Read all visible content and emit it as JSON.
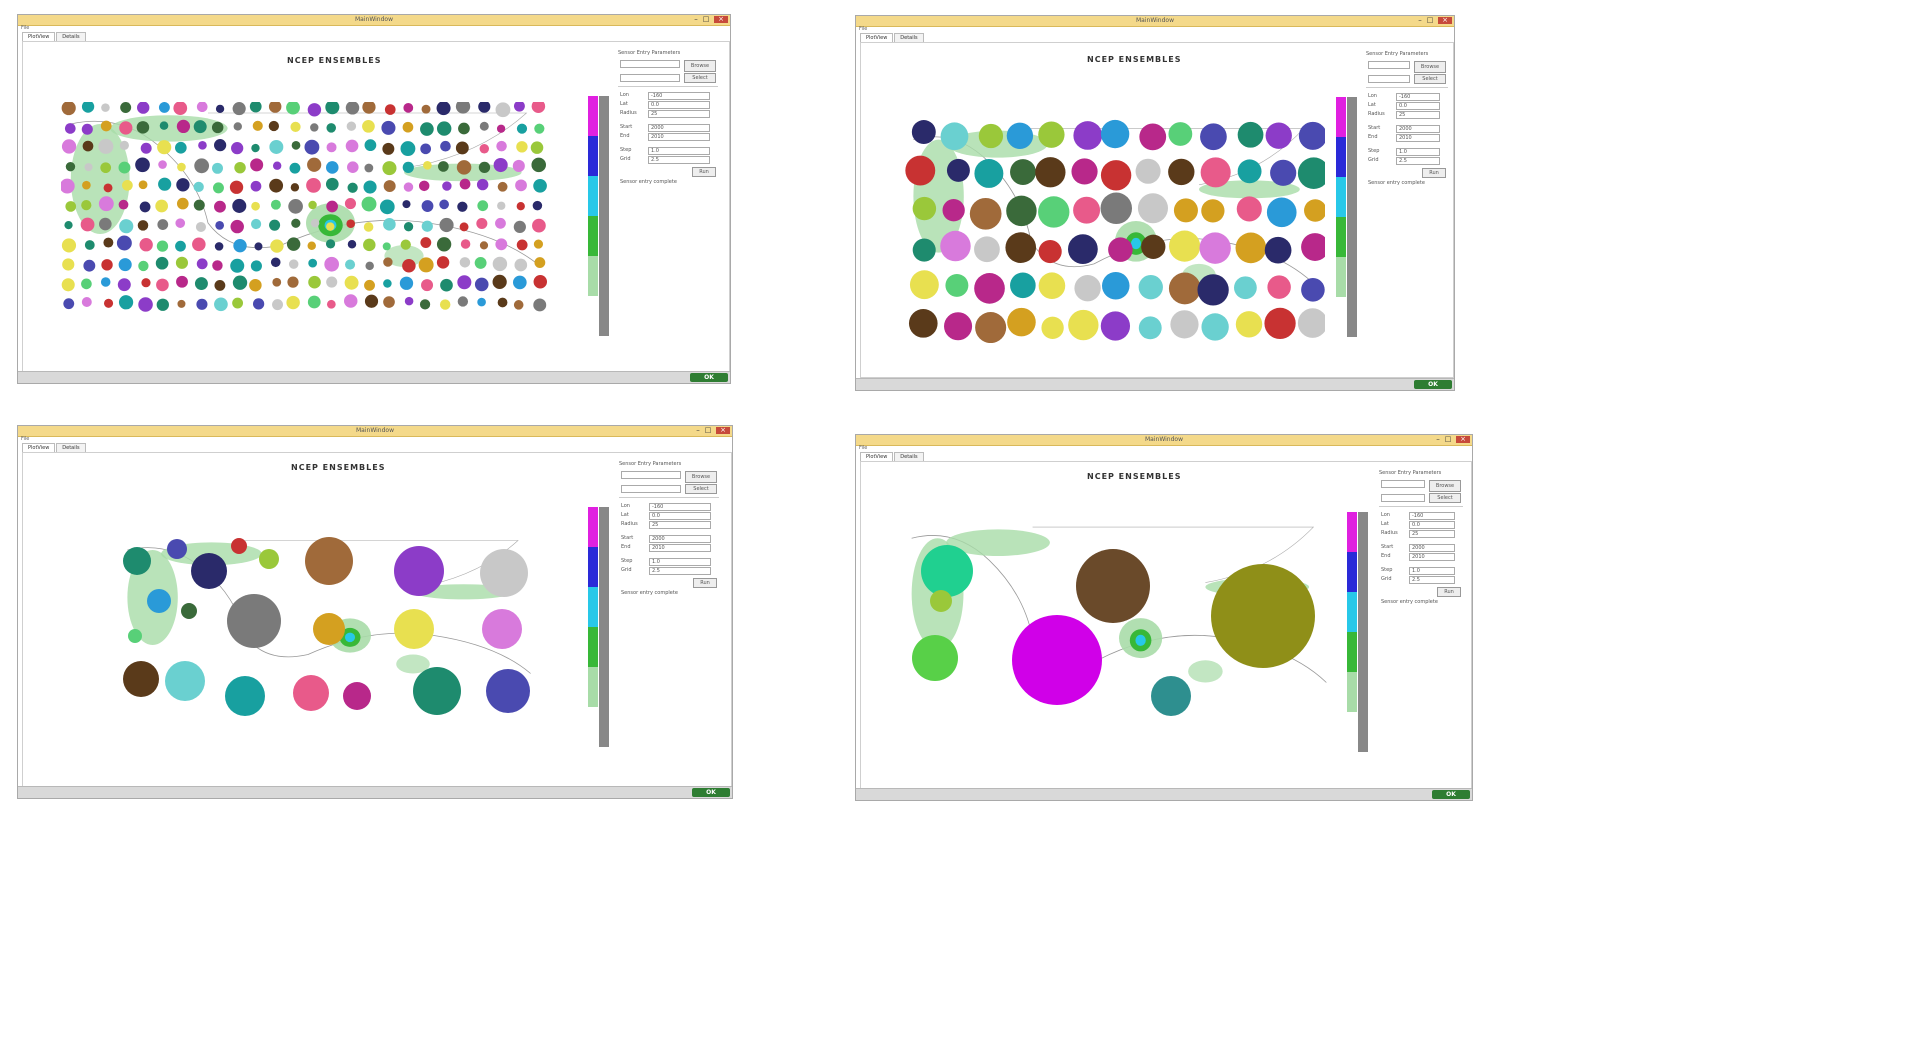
{
  "windows": [
    {
      "title": "MainWindow",
      "tabs": [
        "PlotView",
        "Details"
      ],
      "map_title": "NCEP ENSEMBLES",
      "settings_heading": "Sensor Entry Parameters",
      "fields": [
        {
          "label": "Lon",
          "value": "-160"
        },
        {
          "label": "Lat",
          "value": "0.0"
        },
        {
          "label": "Radius",
          "value": "25"
        },
        {
          "label": "Start",
          "value": "2000"
        },
        {
          "label": "End",
          "value": "2010"
        },
        {
          "label": "Step",
          "value": "1.0"
        },
        {
          "label": "Grid",
          "value": "2.5"
        }
      ],
      "buttons": [
        "Browse",
        "Select",
        "Run"
      ],
      "status_text": "Sensor entry complete",
      "badge": "OK"
    },
    {
      "title": "MainWindow",
      "tabs": [
        "PlotView",
        "Details"
      ],
      "map_title": "NCEP ENSEMBLES",
      "settings_heading": "Sensor Entry Parameters",
      "fields": [
        {
          "label": "Lon",
          "value": "-160"
        },
        {
          "label": "Lat",
          "value": "0.0"
        },
        {
          "label": "Radius",
          "value": "25"
        },
        {
          "label": "Start",
          "value": "2000"
        },
        {
          "label": "End",
          "value": "2010"
        },
        {
          "label": "Step",
          "value": "1.0"
        },
        {
          "label": "Grid",
          "value": "2.5"
        }
      ],
      "buttons": [
        "Browse",
        "Select",
        "Run"
      ],
      "status_text": "Sensor entry complete",
      "badge": "OK"
    },
    {
      "title": "MainWindow",
      "tabs": [
        "PlotView",
        "Details"
      ],
      "map_title": "NCEP ENSEMBLES",
      "settings_heading": "Sensor Entry Parameters",
      "fields": [
        {
          "label": "Lon",
          "value": "-160"
        },
        {
          "label": "Lat",
          "value": "0.0"
        },
        {
          "label": "Radius",
          "value": "25"
        },
        {
          "label": "Start",
          "value": "2000"
        },
        {
          "label": "End",
          "value": "2010"
        },
        {
          "label": "Step",
          "value": "1.0"
        },
        {
          "label": "Grid",
          "value": "2.5"
        }
      ],
      "buttons": [
        "Browse",
        "Select",
        "Run"
      ],
      "status_text": "Sensor entry complete",
      "badge": "OK"
    },
    {
      "title": "MainWindow",
      "tabs": [
        "PlotView",
        "Details"
      ],
      "map_title": "NCEP ENSEMBLES",
      "settings_heading": "Sensor Entry Parameters",
      "fields": [
        {
          "label": "Lon",
          "value": "-160"
        },
        {
          "label": "Lat",
          "value": "0.0"
        },
        {
          "label": "Radius",
          "value": "25"
        },
        {
          "label": "Start",
          "value": "2000"
        },
        {
          "label": "End",
          "value": "2010"
        },
        {
          "label": "Step",
          "value": "1.0"
        },
        {
          "label": "Grid",
          "value": "2.5"
        }
      ],
      "buttons": [
        "Browse",
        "Select",
        "Run"
      ],
      "status_text": "Sensor entry complete",
      "badge": "OK"
    }
  ],
  "colorbar_colors": [
    "#e020e0",
    "#2a2ad8",
    "#28c8e8",
    "#38b838",
    "#a8dca8"
  ],
  "palette": [
    "#1e8b6e",
    "#c83232",
    "#8c3cc8",
    "#2a9ad8",
    "#d4a020",
    "#5a3a1a",
    "#e85a8a",
    "#4a4ab0",
    "#9ac83a",
    "#c8c8c8",
    "#3a6a3a",
    "#e8e050",
    "#6ad0d0",
    "#b8288a",
    "#2a2a6a",
    "#a06a3a",
    "#58d078",
    "#7a7a7a",
    "#d87adc",
    "#18a0a0"
  ]
}
